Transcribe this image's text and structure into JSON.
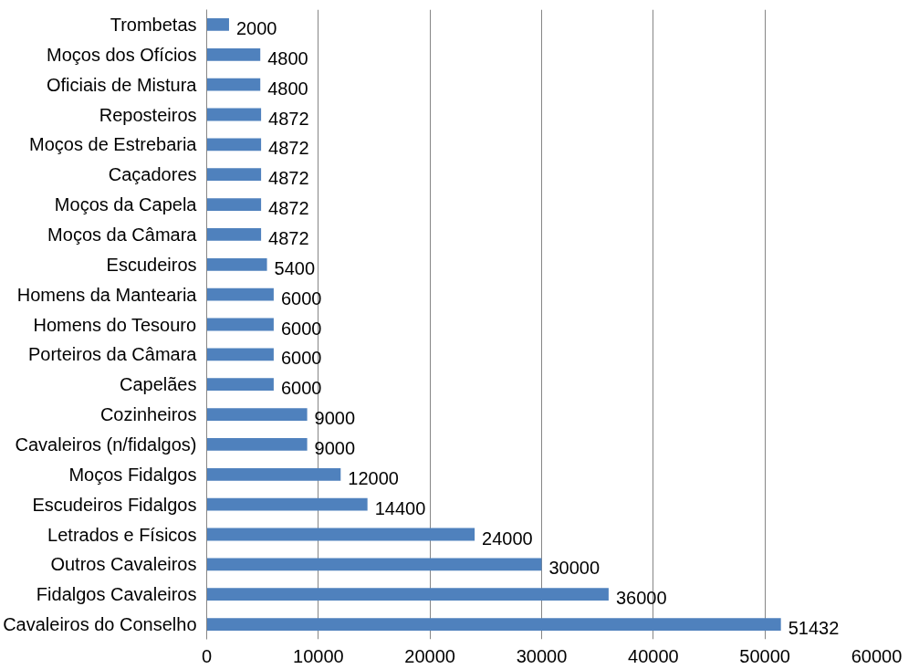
{
  "chart_data": {
    "type": "bar",
    "orientation": "horizontal",
    "categories": [
      "Trombetas",
      "Moços dos Ofícios",
      "Oficiais de Mistura",
      "Reposteiros",
      "Moços de Estrebaria",
      "Caçadores",
      "Moços da Capela",
      "Moços da Câmara",
      "Escudeiros",
      "Homens da Mantearia",
      "Homens do Tesouro",
      "Porteiros da Câmara",
      "Capelães",
      "Cozinheiros",
      "Cavaleiros (n/fidalgos)",
      "Moços Fidalgos",
      "Escudeiros Fidalgos",
      "Letrados e Físicos",
      "Outros Cavaleiros",
      "Fidalgos Cavaleiros",
      "Cavaleiros do Conselho"
    ],
    "values": [
      2000,
      4800,
      4800,
      4872,
      4872,
      4872,
      4872,
      4872,
      5400,
      6000,
      6000,
      6000,
      6000,
      9000,
      9000,
      12000,
      14400,
      24000,
      30000,
      36000,
      51432
    ],
    "color": "#4f81bd",
    "xlim": [
      0,
      60000
    ],
    "xticks": [
      0,
      10000,
      20000,
      30000,
      40000,
      50000,
      60000
    ],
    "grid": "x",
    "data_labels": true
  }
}
